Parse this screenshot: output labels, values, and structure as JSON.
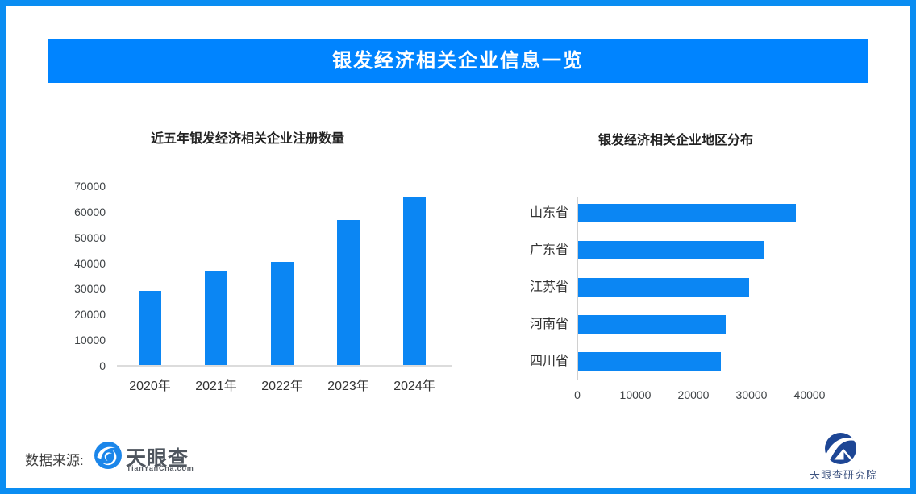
{
  "banner": {
    "title": "银发经济相关企业信息一览"
  },
  "source": {
    "label": "数据来源:"
  },
  "brand": {
    "name": "天眼查",
    "domain": "TianYanCha.com",
    "research": "天眼查研究院"
  },
  "colors": {
    "frame_border": "#0a8df2",
    "banner_bg": "#0084ff",
    "banner_text": "#ffffff",
    "bar_fill": "#0b86f3",
    "axis_line": "#dcdcdc",
    "tyc_icon_blue": "#1b86ea",
    "research_navy": "#1d4695"
  },
  "chart_data": [
    {
      "type": "bar",
      "orientation": "vertical",
      "title": "近五年银发经济相关企业注册数量",
      "categories": [
        "2020年",
        "2021年",
        "2022年",
        "2023年",
        "2024年"
      ],
      "values": [
        29000,
        36800,
        40200,
        56400,
        65300
      ],
      "yticks": [
        0,
        10000,
        20000,
        30000,
        40000,
        50000,
        60000,
        70000
      ],
      "ylim": [
        0,
        70000
      ],
      "xlabel": "",
      "ylabel": "",
      "grid": false,
      "legend": null,
      "bar_color": "#0b86f3"
    },
    {
      "type": "bar",
      "orientation": "horizontal",
      "title": "银发经济相关企业地区分布",
      "categories": [
        "山东省",
        "广东省",
        "江苏省",
        "河南省",
        "四川省"
      ],
      "values": [
        37500,
        32000,
        29500,
        25400,
        24600
      ],
      "xticks": [
        0,
        10000,
        20000,
        30000,
        40000
      ],
      "xlim": [
        0,
        43000
      ],
      "xlabel": "",
      "ylabel": "",
      "grid": false,
      "legend": null,
      "bar_color": "#0b86f3"
    }
  ]
}
